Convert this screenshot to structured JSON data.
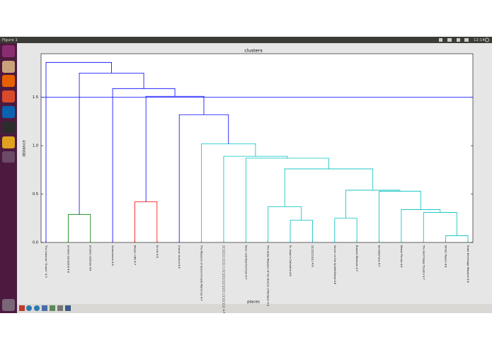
{
  "window": {
    "title": "Figure 1",
    "clock": "12:14"
  },
  "chart_data": {
    "type": "dendrogram",
    "title": "clusters",
    "xlabel": "places",
    "ylabel": "distance",
    "leaves": [
      "The Lobanov \"Krapiv\" 4.3",
      "Smolny Cathedral 4.6",
      "Smolny Institute 4.6",
      "Oceanarium 4.6",
      "Mosaic lofts 4.7",
      "Kirichi 4.6",
      "Cruiser Aurora 4.6",
      "The Museum of Soviet Arcade Machines 4.7",
      "□□□□□ □□□ □ □□□□□□□□□□ □□□□□□ 4.7",
      "Peter and Paul Fortress 4.7",
      "The State Museum of the History of Religion 4.6",
      "St. Isaac's Cathedral 4.8",
      "□□□□□□□ 4.6",
      "Savior on the Spilled Blood 4.8",
      "Russian Museum 4.7",
      "Kunstkamera 4.7",
      "Mezzo Pechat 4.6",
      "The Hermitage Theatre 4.7",
      "Winter Palace 4.8",
      "State Hermitage Museum 4.8"
    ],
    "merges": [
      {
        "children": [
          18,
          19
        ],
        "height": 0.07,
        "color": "#00bfbf"
      },
      {
        "children": [
          17,
          20
        ],
        "height": 0.31,
        "color": "#00bfbf"
      },
      {
        "children": [
          16,
          21
        ],
        "height": 0.34,
        "color": "#00bfbf"
      },
      {
        "children": [
          15,
          22
        ],
        "height": 0.53,
        "color": "#00bfbf"
      },
      {
        "children": [
          13,
          14
        ],
        "height": 0.25,
        "color": "#00bfbf"
      },
      {
        "children": [
          24,
          23
        ],
        "height": 0.54,
        "color": "#00bfbf"
      },
      {
        "children": [
          11,
          12
        ],
        "height": 0.23,
        "color": "#00bfbf"
      },
      {
        "children": [
          10,
          26
        ],
        "height": 0.37,
        "color": "#00bfbf"
      },
      {
        "children": [
          27,
          25
        ],
        "height": 0.76,
        "color": "#00bfbf"
      },
      {
        "children": [
          9,
          28
        ],
        "height": 0.87,
        "color": "#00bfbf"
      },
      {
        "children": [
          8,
          29
        ],
        "height": 0.89,
        "color": "#00bfbf"
      },
      {
        "children": [
          7,
          30
        ],
        "height": 1.02,
        "color": "#00bfbf"
      },
      {
        "children": [
          1,
          2
        ],
        "height": 0.29,
        "color": "#008000"
      },
      {
        "children": [
          4,
          5
        ],
        "height": 0.42,
        "color": "#ff0000"
      },
      {
        "children": [
          6,
          31
        ],
        "height": 1.32,
        "color": "#0000ff"
      },
      {
        "children": [
          33,
          34
        ],
        "height": 1.51,
        "color": "#0000ff"
      },
      {
        "children": [
          3,
          35
        ],
        "height": 1.59,
        "color": "#0000ff"
      },
      {
        "children": [
          32,
          36
        ],
        "height": 1.75,
        "color": "#0000ff"
      },
      {
        "children": [
          0,
          37
        ],
        "height": 1.86,
        "color": "#0000ff"
      }
    ],
    "threshold": 1.5,
    "threshold_color": "#0000ff",
    "ylim": [
      0,
      1.95
    ],
    "yticks": [
      {
        "value": 0,
        "label": "0.0"
      },
      {
        "value": 0.5,
        "label": "0.5"
      },
      {
        "value": 1,
        "label": "1.0"
      },
      {
        "value": 1.5,
        "label": "1.5"
      }
    ]
  }
}
